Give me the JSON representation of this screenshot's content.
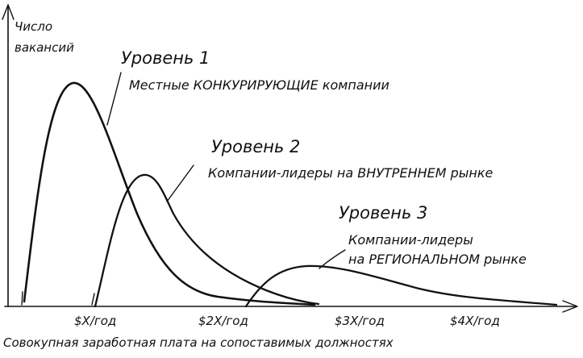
{
  "axes": {
    "y_label_line1": "Число",
    "y_label_line2": "вакансий",
    "x_label": "Совокупная заработная плата на сопоставимых должностях",
    "ticks": [
      "$X/год",
      "$2X/год",
      "$3X/год",
      "$4X/год"
    ]
  },
  "levels": [
    {
      "title": "Уровень 1",
      "description": "Местные КОНКУРИРУЮЩИЕ компании"
    },
    {
      "title": "Уровень 2",
      "description": "Компании-лидеры на ВНУТРЕННЕМ рынке"
    },
    {
      "title": "Уровень 3",
      "description_line1": "Компании-лидеры",
      "description_line2": "на РЕГИОНАЛЬНОМ рынке"
    }
  ],
  "colors": {
    "ink": "#111111",
    "background": "#ffffff"
  }
}
